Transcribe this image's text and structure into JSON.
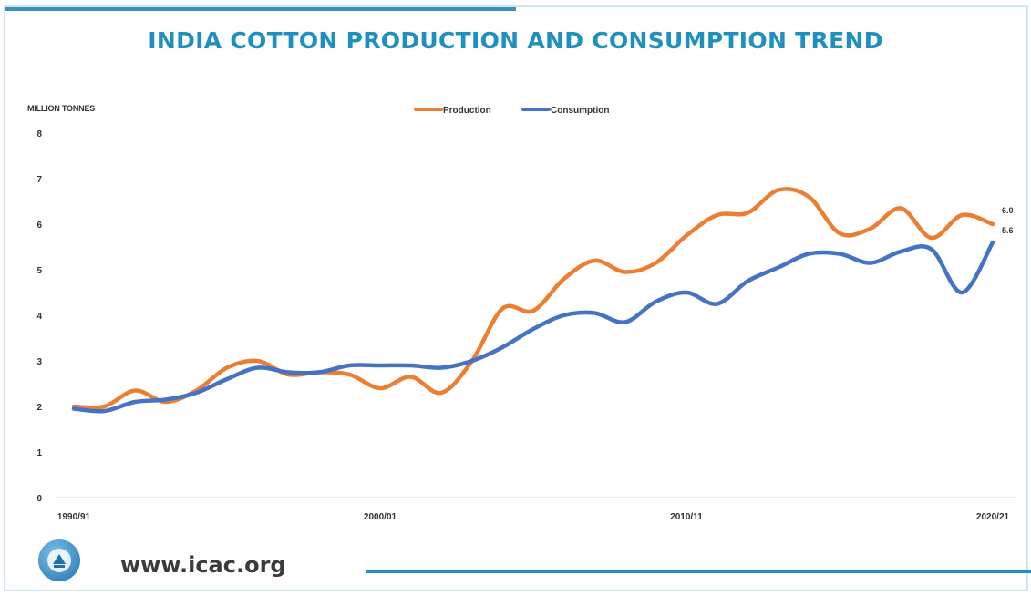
{
  "page": {
    "title": "INDIA COTTON PRODUCTION AND CONSUMPTION TREND",
    "website": "www.icac.org",
    "logo_icon": "icac-globe-logo"
  },
  "chart_data": {
    "type": "line",
    "title": "INDIA COTTON PRODUCTION AND CONSUMPTION TREND",
    "ylabel": "MILLION TONNES",
    "xlabel": "",
    "ylim": [
      0,
      8
    ],
    "yticks": [
      "0",
      "1",
      "2",
      "3",
      "4",
      "5",
      "6",
      "7",
      "8"
    ],
    "x_tick_labels": [
      "1990/91",
      "2000/01",
      "2010/11",
      "2020/21"
    ],
    "x_tick_index": [
      0,
      10,
      20,
      30
    ],
    "legend_position": "top-center",
    "grid": false,
    "series": [
      {
        "name": "Production",
        "color": "#ed7d31",
        "end_label": "6.0",
        "values": [
          2.0,
          2.0,
          2.35,
          2.1,
          2.35,
          2.85,
          3.0,
          2.7,
          2.75,
          2.7,
          2.4,
          2.65,
          2.3,
          3.0,
          4.15,
          4.1,
          4.8,
          5.2,
          4.95,
          5.15,
          5.75,
          6.2,
          6.25,
          6.75,
          6.6,
          5.8,
          5.9,
          6.35,
          5.7,
          6.2,
          6.0
        ]
      },
      {
        "name": "Consumption",
        "color": "#4472c4",
        "end_label": "5.6",
        "values": [
          1.95,
          1.9,
          2.1,
          2.15,
          2.3,
          2.6,
          2.85,
          2.75,
          2.75,
          2.9,
          2.9,
          2.9,
          2.85,
          3.0,
          3.3,
          3.7,
          4.0,
          4.05,
          3.85,
          4.3,
          4.5,
          4.25,
          4.75,
          5.05,
          5.35,
          5.35,
          5.15,
          5.4,
          5.45,
          4.5,
          5.6
        ]
      }
    ]
  }
}
